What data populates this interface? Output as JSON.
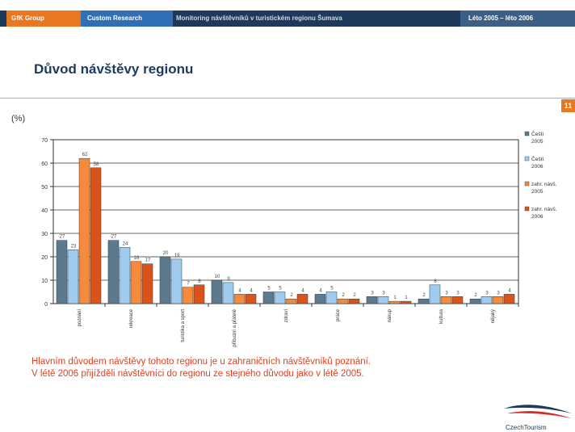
{
  "header": {
    "brand": "GfK Group",
    "unit": "Custom Research",
    "project": "Monitoring návštěvníků v turistickém regionu Šumava",
    "period": "Léto 2005 – léto 2006"
  },
  "page_title": "Důvod návštěvy regionu",
  "page_number": "11",
  "chart_data": {
    "type": "bar",
    "ylabel": "(%)",
    "ylim": [
      0,
      70
    ],
    "yticks": [
      0,
      10,
      20,
      30,
      40,
      50,
      60,
      70
    ],
    "grid": true,
    "legend_position": "right",
    "categories": [
      "poznání",
      "rekreace",
      "turistika a sport",
      "příbuzní a přátelé",
      "zdraví",
      "práce",
      "nákup",
      "kultura",
      "nějaký"
    ],
    "series": [
      {
        "name": "Čeští 2005",
        "color": "#5d7a8c",
        "values": [
          27,
          27,
          20,
          10,
          5,
          4,
          3,
          2,
          2
        ]
      },
      {
        "name": "Čeští 2006",
        "color": "#9ecbee",
        "values": [
          23,
          24,
          19,
          9,
          5,
          5,
          3,
          8,
          3
        ]
      },
      {
        "name": "zahr. návštěvníci 2005",
        "color": "#f58a3c",
        "values": [
          62,
          18,
          7,
          4,
          2,
          2,
          1,
          3,
          3
        ]
      },
      {
        "name": "zahr. návštěvníci 2006",
        "color": "#d9531a",
        "values": [
          58,
          17,
          8,
          4,
          4,
          2,
          1,
          3,
          4
        ]
      }
    ],
    "legend_labels": [
      [
        "Čeští",
        "2005"
      ],
      [
        "Čeští",
        "2006"
      ],
      [
        "zahr. návš.",
        "2005"
      ],
      [
        "zahr. návš.",
        "2006"
      ]
    ]
  },
  "note": [
    "Hlavním důvodem návštěvy tohoto regionu je u zahraničních návštěvníků poznání.",
    "V létě 2006 přijížděli návštěvníci do regionu ze stejného důvodu jako v létě 2005."
  ],
  "logo_text": "CzechTourism"
}
